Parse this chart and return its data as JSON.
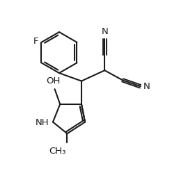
{
  "background_color": "#ffffff",
  "line_color": "#1a1a1a",
  "line_width": 1.5,
  "font_size": 8.5,
  "figsize": [
    2.57,
    2.46
  ],
  "dpi": 100,
  "xlim": [
    0,
    10
  ],
  "ylim": [
    0,
    9.6
  ]
}
